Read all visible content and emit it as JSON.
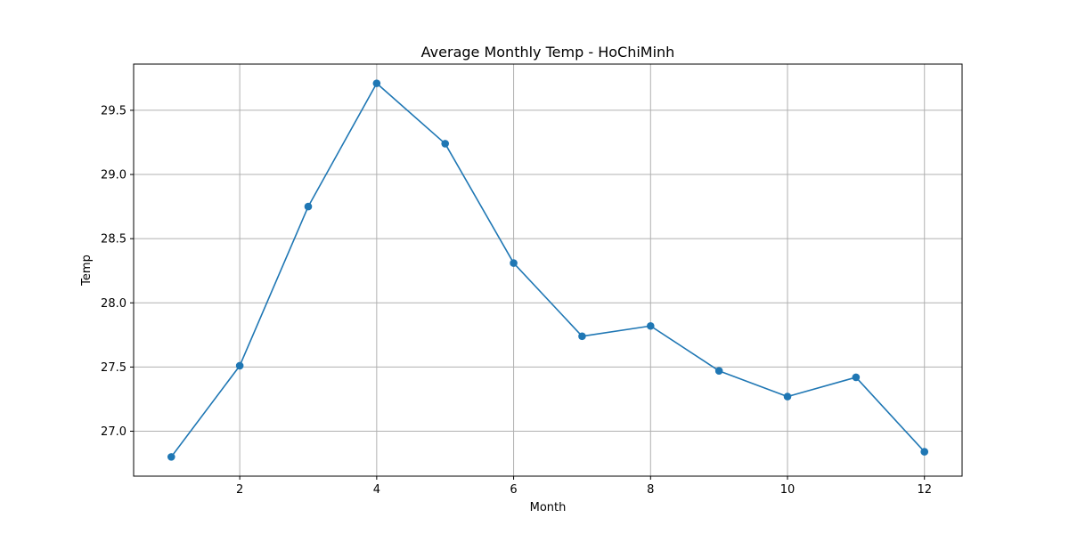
{
  "chart_data": {
    "type": "line",
    "title": "Average Monthly Temp - HoChiMinh",
    "xlabel": "Month",
    "ylabel": "Temp",
    "x": [
      1,
      2,
      3,
      4,
      5,
      6,
      7,
      8,
      9,
      10,
      11,
      12
    ],
    "series": [
      {
        "values": [
          26.8,
          27.51,
          28.75,
          29.71,
          29.24,
          28.31,
          27.74,
          27.82,
          27.47,
          27.27,
          27.42,
          26.84
        ],
        "color": "#1f77b4",
        "marker": "circle"
      }
    ],
    "xlim": [
      0.45,
      12.55
    ],
    "ylim": [
      26.65,
      29.86
    ],
    "xticks": [
      2,
      4,
      6,
      8,
      10,
      12
    ],
    "yticks": [
      27.0,
      27.5,
      28.0,
      28.5,
      29.0,
      29.5
    ],
    "xtick_labels": [
      "2",
      "4",
      "6",
      "8",
      "10",
      "12"
    ],
    "ytick_labels": [
      "27.0",
      "27.5",
      "28.0",
      "28.5",
      "29.0",
      "29.5"
    ],
    "grid": true,
    "legend": false
  }
}
